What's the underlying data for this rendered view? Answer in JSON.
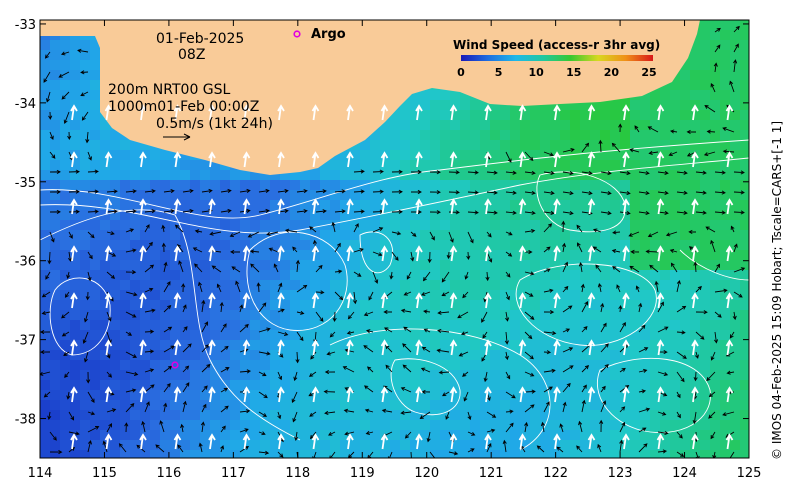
{
  "map": {
    "date": "01-Feb-2025",
    "time": "08Z",
    "depth_info_1": "200m  NRT00 GSL",
    "depth_info_2": "1000m01-Feb 00:00Z",
    "scale_label": "0.5m/s (1kt 24h)",
    "argo_label": "Argo",
    "credit": "© IMOS 04-Feb-2025 15:09 Hobart; Tscale=CARS+[-1 1]",
    "colors": {
      "land": "#f9cb98",
      "argo": "#e000e0",
      "contour": "#ffffff",
      "vector": "#000000"
    },
    "colorbar": {
      "title": "Wind Speed (access-r 3hr avg)",
      "ticks": [
        "0",
        "5",
        "10",
        "15",
        "20",
        "25"
      ],
      "stops": [
        "#1a1ab8",
        "#1f6fe0",
        "#1fb8e8",
        "#20c8a0",
        "#38c830",
        "#d8d820",
        "#f09018",
        "#d81818"
      ]
    },
    "x_axis": {
      "ticks": [
        "114",
        "115",
        "116",
        "117",
        "118",
        "119",
        "120",
        "121",
        "122",
        "123",
        "124",
        "125"
      ]
    },
    "y_axis": {
      "ticks": [
        "-33",
        "-34",
        "-35",
        "-36",
        "-37",
        "-38"
      ]
    }
  }
}
